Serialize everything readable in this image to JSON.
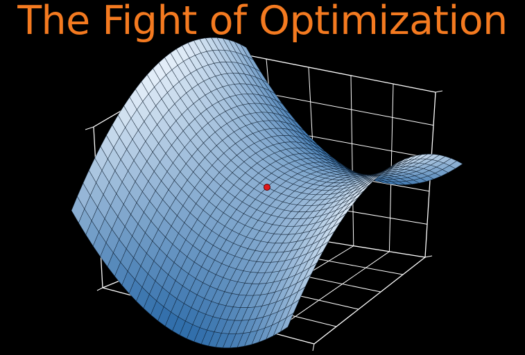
{
  "slide": {
    "title": "The Fight of Optimization",
    "title_color": "#F47A20",
    "background": "#000000"
  },
  "figure": {
    "type": "3d surface plot",
    "surface": "saddle",
    "colormap": "Blues",
    "surface_color_low": "#2B6AA8",
    "surface_color_high": "#E9F2FB",
    "mesh_line_color": "#0B1A2A",
    "frame_line_color": "#FFFFFF",
    "grid": true,
    "marker": {
      "description": "saddle point",
      "color": "#E0181B",
      "edge_color": "#5A0000"
    }
  }
}
